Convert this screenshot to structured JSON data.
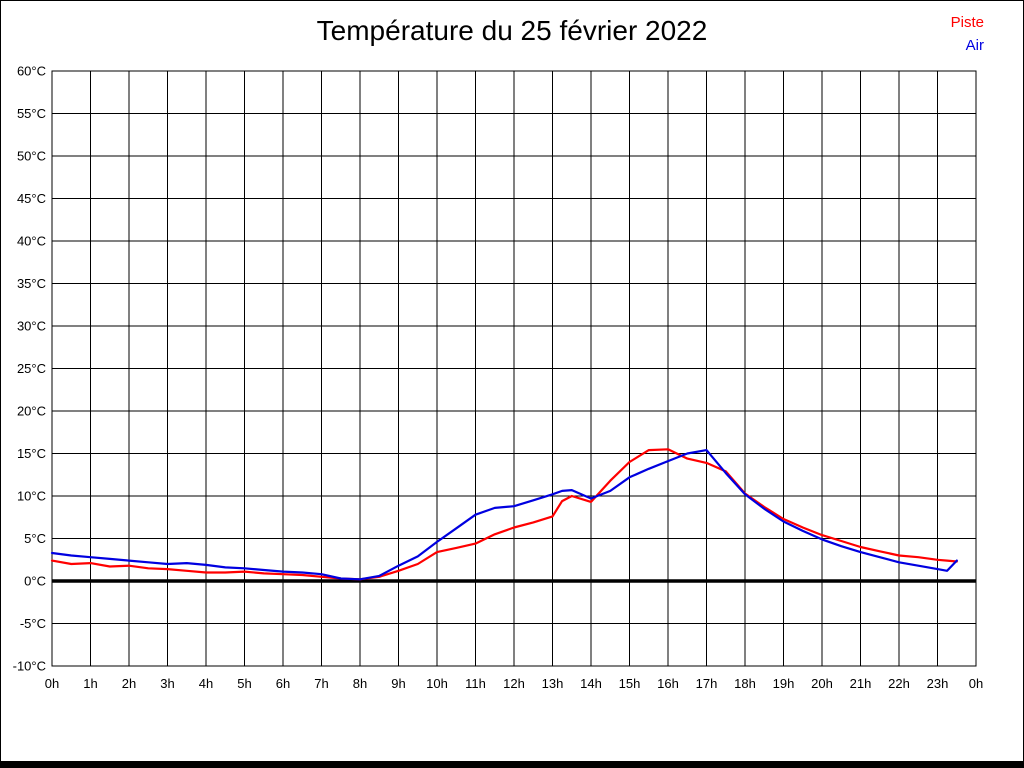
{
  "title": "Température du 25 février 2022",
  "legend": [
    {
      "label": "Piste",
      "color": "#ff0000"
    },
    {
      "label": "Air",
      "color": "#0000e0"
    }
  ],
  "chart_data": {
    "type": "line",
    "title": "Température du 25 février 2022",
    "xlabel": "",
    "ylabel": "",
    "xlim": [
      0,
      24
    ],
    "ylim": [
      -10,
      60
    ],
    "y_step": 5,
    "grid": true,
    "zero_line_value": 0,
    "legend_position": "top-right",
    "x_ticks": [
      "0h",
      "1h",
      "2h",
      "3h",
      "4h",
      "5h",
      "6h",
      "7h",
      "8h",
      "9h",
      "10h",
      "11h",
      "12h",
      "13h",
      "14h",
      "15h",
      "16h",
      "17h",
      "18h",
      "19h",
      "20h",
      "21h",
      "22h",
      "23h",
      "0h"
    ],
    "y_ticks": [
      "60°C",
      "55°C",
      "50°C",
      "45°C",
      "40°C",
      "35°C",
      "30°C",
      "25°C",
      "20°C",
      "15°C",
      "10°C",
      "5°C",
      "0°C",
      "-5°C",
      "-10°C"
    ],
    "x": [
      0,
      0.5,
      1,
      1.5,
      2,
      2.5,
      3,
      3.5,
      4,
      4.5,
      5,
      5.5,
      6,
      6.5,
      7,
      7.5,
      8,
      8.5,
      9,
      9.5,
      10,
      10.5,
      11,
      11.5,
      12,
      12.5,
      13,
      13.25,
      13.5,
      14,
      14.5,
      15,
      15.5,
      16,
      16.5,
      17,
      17.5,
      18,
      18.5,
      19,
      19.5,
      20,
      20.5,
      21,
      21.5,
      22,
      22.5,
      23,
      23.25,
      23.5
    ],
    "series": [
      {
        "name": "Piste",
        "color": "#ff0000",
        "values": [
          2.4,
          2.0,
          2.1,
          1.7,
          1.8,
          1.5,
          1.4,
          1.2,
          1.0,
          1.0,
          1.1,
          0.9,
          0.8,
          0.7,
          0.5,
          0.3,
          0.2,
          0.5,
          1.2,
          2.0,
          3.4,
          3.9,
          4.4,
          5.5,
          6.3,
          6.9,
          7.6,
          9.4,
          10.0,
          9.3,
          11.8,
          14.0,
          15.4,
          15.5,
          14.4,
          13.9,
          12.9,
          10.3,
          8.7,
          7.3,
          6.3,
          5.4,
          4.7,
          4.0,
          3.5,
          3.0,
          2.8,
          2.5,
          2.4,
          2.3
        ]
      },
      {
        "name": "Air",
        "color": "#0000e0",
        "values": [
          3.3,
          3.0,
          2.8,
          2.6,
          2.4,
          2.2,
          2.0,
          2.1,
          1.9,
          1.6,
          1.5,
          1.3,
          1.1,
          1.0,
          0.8,
          0.3,
          0.2,
          0.6,
          1.8,
          2.9,
          4.6,
          6.2,
          7.8,
          8.6,
          8.8,
          9.5,
          10.2,
          10.6,
          10.7,
          9.7,
          10.6,
          12.2,
          13.2,
          14.1,
          15.0,
          15.4,
          12.7,
          10.2,
          8.5,
          7.0,
          5.9,
          4.9,
          4.1,
          3.4,
          2.8,
          2.2,
          1.8,
          1.4,
          1.2,
          2.4
        ]
      }
    ]
  }
}
